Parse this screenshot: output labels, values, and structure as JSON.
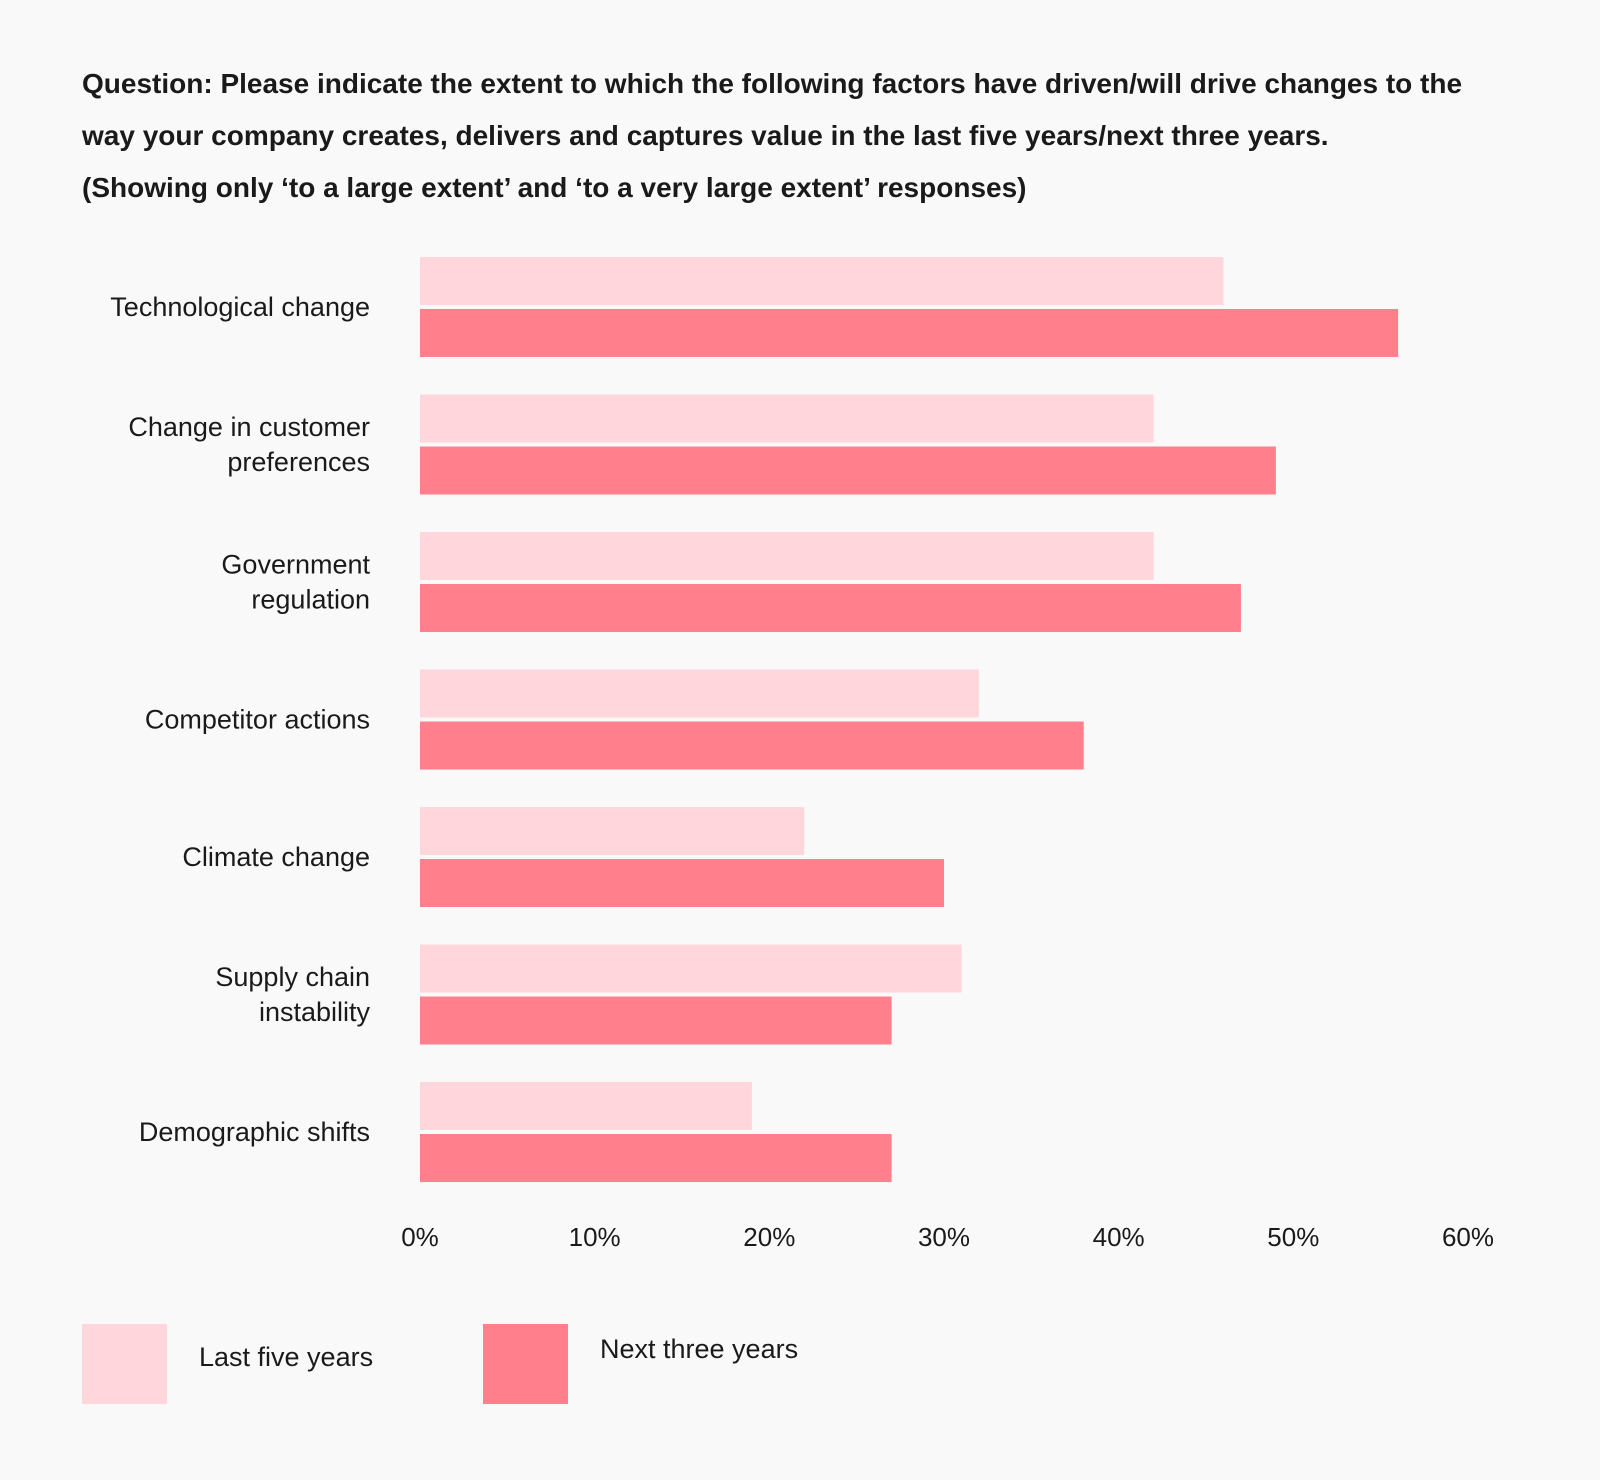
{
  "question": {
    "line1": "Question: Please indicate the extent to which the following factors have driven/will drive changes to the",
    "line2": "way your company creates, delivers and captures value in the last five years/next three years.",
    "line3": "(Showing only ‘to a large extent’ and ‘to a very large extent’ responses)"
  },
  "chart_data": {
    "type": "bar",
    "orientation": "horizontal",
    "title": "Question: Please indicate the extent to which the following factors have driven/will drive changes to the way your company creates, delivers and captures value in the last five years/next three years. (Showing only ‘to a large extent’ and ‘to a very large extent’ responses)",
    "categories": [
      [
        "Technological change"
      ],
      [
        "Change in customer",
        "preferences"
      ],
      [
        "Government",
        "regulation"
      ],
      [
        "Competitor actions"
      ],
      [
        "Climate change"
      ],
      [
        "Supply chain",
        "instability"
      ],
      [
        "Demographic shifts"
      ]
    ],
    "series": [
      {
        "name": "Last five years",
        "color": "#ffd6dc",
        "values": [
          46,
          42,
          42,
          32,
          22,
          31,
          19
        ]
      },
      {
        "name": "Next three years",
        "color": "#ff7f8d",
        "values": [
          56,
          49,
          47,
          38,
          30,
          27,
          27
        ]
      }
    ],
    "xlim": [
      0,
      60
    ],
    "xticks": [
      0,
      10,
      20,
      30,
      40,
      50,
      60
    ],
    "xtick_labels": [
      "0%",
      "10%",
      "20%",
      "30%",
      "40%",
      "50%",
      "60%"
    ],
    "xlabel": "",
    "ylabel": "",
    "grid": false,
    "legend_position": "bottom-left"
  }
}
